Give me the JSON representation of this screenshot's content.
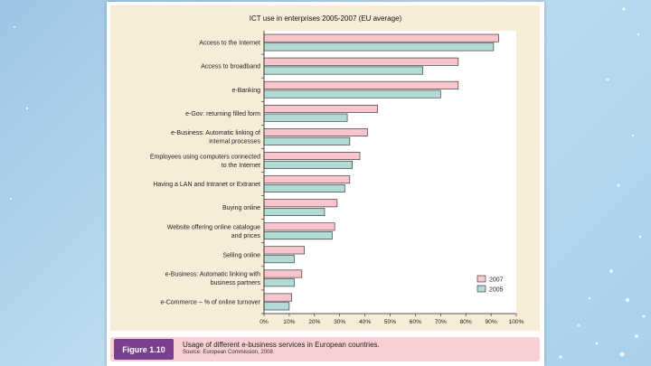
{
  "chart_data": {
    "type": "bar",
    "orientation": "horizontal",
    "title": "ICT use in enterprises 2005-2007 (EU average)",
    "categories": [
      "Access to the Internet",
      "Access to broadband",
      "e-Banking",
      "e-Gov: returning filled form",
      "e-Business: Automatic linking of internal processes",
      "Employees using computers connected to the Internet",
      "Having a LAN and Intranet or Extranet",
      "Buying online",
      "Website offering online catalogue and prices",
      "Selling online",
      "e-Business: Automatic linking with business partners",
      "e-Commerce – % of online turnover"
    ],
    "category_lines": [
      [
        "Access to the Internet"
      ],
      [
        "Access to broadband"
      ],
      [
        "e-Banking"
      ],
      [
        "e-Gov: returning filled form"
      ],
      [
        "e-Business: Automatic linking of",
        "internal processes"
      ],
      [
        "Employees using computers connected",
        "to the Internet"
      ],
      [
        "Having a LAN and Intranet or Extranet"
      ],
      [
        "Buying online"
      ],
      [
        "Website offering online catalogue",
        "and prices"
      ],
      [
        "Selling online"
      ],
      [
        "e-Business: Automatic linking with",
        "business partners"
      ],
      [
        "e-Commerce – % of online turnover"
      ]
    ],
    "series": [
      {
        "name": "2007",
        "color": "#f8c5cc",
        "values": [
          93,
          77,
          77,
          45,
          41,
          38,
          34,
          29,
          28,
          16,
          15,
          11
        ]
      },
      {
        "name": "2005",
        "color": "#b3dbd6",
        "values": [
          91,
          63,
          70,
          33,
          34,
          35,
          32,
          24,
          27,
          12,
          12,
          10
        ]
      }
    ],
    "xlim": [
      0,
      100
    ],
    "x_ticks": [
      "0%",
      "10%",
      "20%",
      "30%",
      "40%",
      "50%",
      "60%",
      "70%",
      "80%",
      "90%",
      "100%"
    ],
    "legend_position": "bottom-right",
    "grid": false
  },
  "caption": {
    "figure_label": "Figure 1.10",
    "text": "Usage of different e-business services in European countries.",
    "source": "Source: European Commission, 2008."
  },
  "colors": {
    "panel_background": "#f7ecd8",
    "caption_background": "#f8cfd2",
    "figure_label_background": "#7a3f8e"
  }
}
